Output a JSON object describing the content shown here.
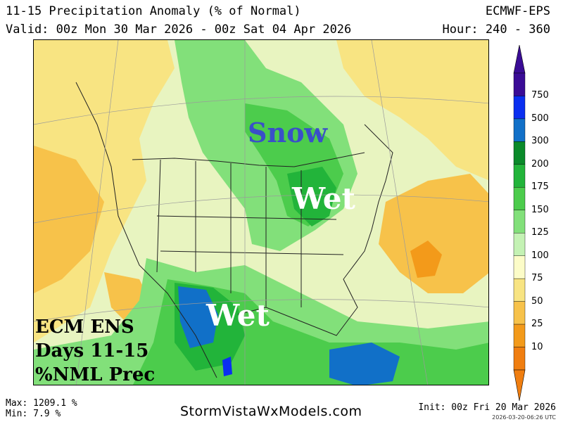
{
  "header": {
    "title": "11-15 Precipitation Anomaly (% of Normal)",
    "valid": "Valid: 00z Mon 30 Mar 2026 - 00z Sat 04 Apr 2026",
    "model": "ECMWF-EPS",
    "hour": "Hour: 240 - 360"
  },
  "map_labels": {
    "snow": "Snow",
    "wet_upper": "Wet",
    "wet_lower": "Wet"
  },
  "caption": {
    "line1": "ECM ENS",
    "line2": "Days 11-15",
    "line3": "%NML Prec"
  },
  "legend": {
    "levels": [
      "750",
      "500",
      "300",
      "200",
      "175",
      "150",
      "125",
      "100",
      "75",
      "50",
      "25",
      "10"
    ],
    "colors": [
      "#3a0c96",
      "#0a2ff0",
      "#1170c8",
      "#0a8a2a",
      "#22b43a",
      "#4ccc4c",
      "#82e07a",
      "#c4f2b4",
      "#fcfcc8",
      "#f8e482",
      "#f7c24a",
      "#f39a1a",
      "#f07e10"
    ]
  },
  "footer": {
    "max": "Max: 1209.1 %",
    "min": "Min: 7.9 %",
    "site": "StormVistaWxModels.com",
    "init": "Init: 00z Fri 20 Mar 2026",
    "stamp": "2026-03-20-06:26 UTC"
  }
}
